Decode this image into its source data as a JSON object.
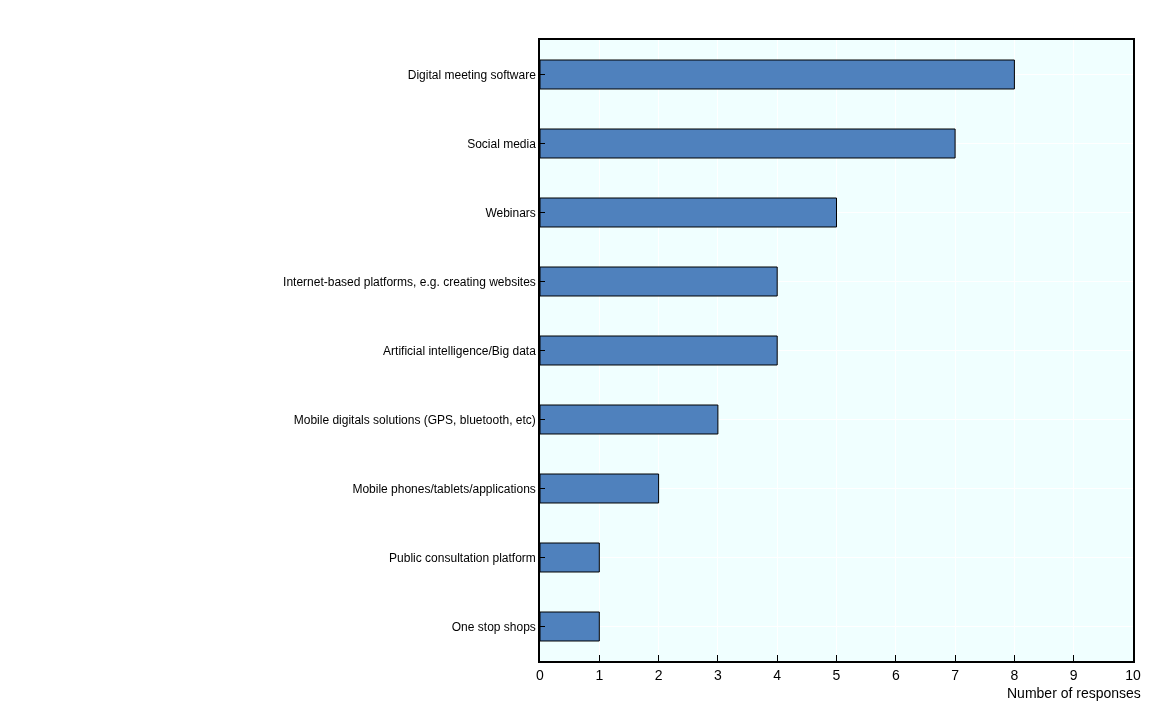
{
  "chart_data": {
    "type": "bar",
    "orientation": "horizontal",
    "categories": [
      "Digital meeting software",
      "Social media",
      "Webinars",
      "Internet-based platforms, e.g. creating websites",
      "Artificial intelligence/Big data",
      "Mobile digitals solutions (GPS, bluetooth, etc)",
      "Mobile phones/tablets/applications",
      "Public consultation platform",
      "One stop shops"
    ],
    "values": [
      8,
      7,
      5,
      4,
      4,
      3,
      2,
      1,
      1
    ],
    "color": "#4f81bd",
    "xlabel": "Number of responses",
    "xlim": [
      0,
      10
    ],
    "xticks": [
      0,
      1,
      2,
      3,
      4,
      5,
      6,
      7,
      8,
      9,
      10
    ],
    "grid": true
  }
}
